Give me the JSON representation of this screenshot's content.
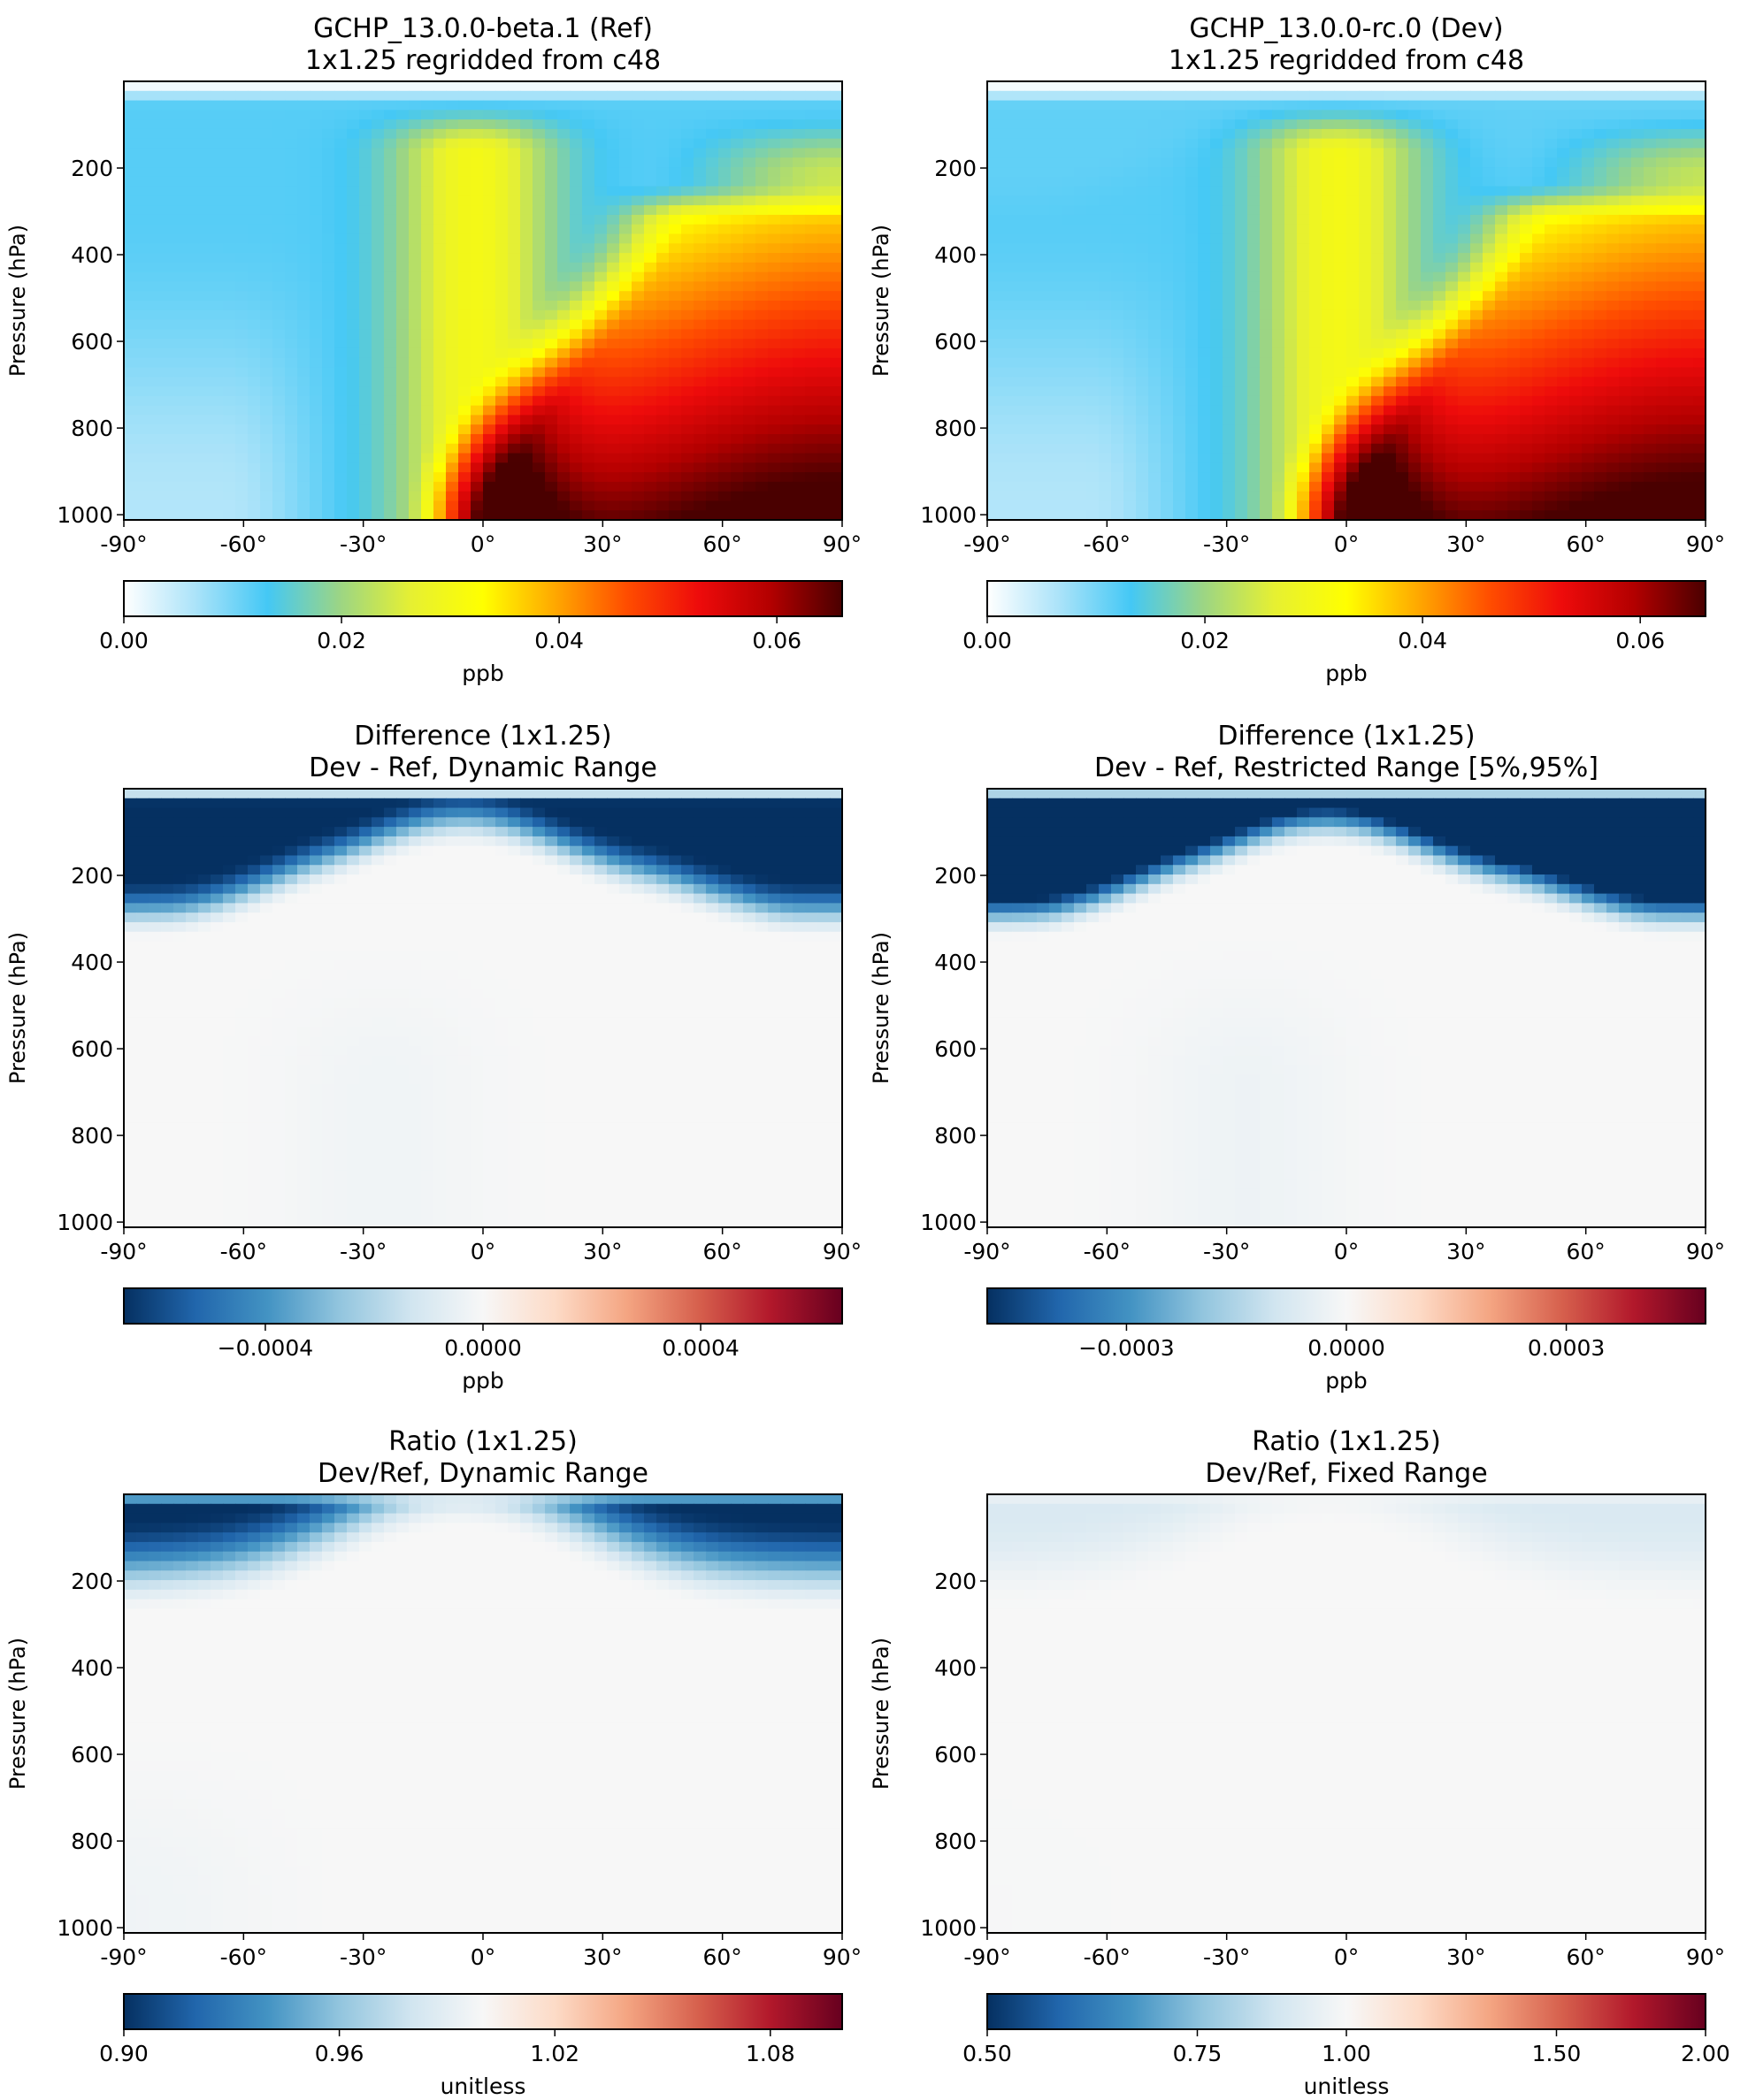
{
  "figure": {
    "y_axis_label": "Pressure (hPa)",
    "y_ticks": [
      200,
      400,
      600,
      800,
      1000
    ],
    "y_range": [
      1012,
      0
    ],
    "x_ticks": [
      "-90°",
      "-60°",
      "-30°",
      "0°",
      "30°",
      "60°",
      "90°"
    ],
    "x_range": [
      -90,
      90
    ]
  },
  "colormaps": {
    "wbgyr": [
      "#ffffff",
      "#abe3f9",
      "#44c8f5",
      "#9bd585",
      "#e6f032",
      "#ffff00",
      "#ffa800",
      "#ff4d00",
      "#ee0b0b",
      "#b30000",
      "#4a0000"
    ],
    "rdbu_r": [
      "#053061",
      "#2166ac",
      "#4393c3",
      "#92c5de",
      "#d1e5f0",
      "#f7f7f7",
      "#fddbc7",
      "#f4a582",
      "#d6604d",
      "#b2182b",
      "#67001f"
    ]
  },
  "chart_data": [
    {
      "type": "heatmap",
      "id": "ref",
      "title_line1": "GCHP_13.0.0-beta.1 (Ref)",
      "title_line2": "1x1.25 regridded from c48",
      "xlabel": "",
      "ylabel": "Pressure (hPa)",
      "field": "ref",
      "colormap": "wbgyr",
      "vrange": [
        0.0,
        0.066
      ],
      "colorbar": {
        "ticks": [
          "0.00",
          "0.02",
          "0.04",
          "0.06"
        ],
        "tick_values": [
          0.0,
          0.02,
          0.04,
          0.06
        ],
        "label": "ppb"
      }
    },
    {
      "type": "heatmap",
      "id": "dev",
      "title_line1": "GCHP_13.0.0-rc.0 (Dev)",
      "title_line2": "1x1.25 regridded from c48",
      "xlabel": "",
      "ylabel": "Pressure (hPa)",
      "field": "dev",
      "colormap": "wbgyr",
      "vrange": [
        0.0,
        0.066
      ],
      "colorbar": {
        "ticks": [
          "0.00",
          "0.02",
          "0.04",
          "0.06"
        ],
        "tick_values": [
          0.0,
          0.02,
          0.04,
          0.06
        ],
        "label": "ppb"
      }
    },
    {
      "type": "heatmap",
      "id": "diff-dynamic",
      "title_line1": "Difference (1x1.25)",
      "title_line2": "Dev - Ref, Dynamic Range",
      "xlabel": "",
      "ylabel": "Pressure (hPa)",
      "field": "diff",
      "colormap": "rdbu_r",
      "vrange": [
        -0.00066,
        0.00066
      ],
      "colorbar": {
        "ticks": [
          "−0.0004",
          "0.0000",
          "0.0004"
        ],
        "tick_values": [
          -0.0004,
          0.0,
          0.0004
        ],
        "label": "ppb"
      }
    },
    {
      "type": "heatmap",
      "id": "diff-restricted",
      "title_line1": "Difference (1x1.25)",
      "title_line2": "Dev - Ref, Restricted Range [5%,95%]",
      "xlabel": "",
      "ylabel": "Pressure (hPa)",
      "field": "diff",
      "colormap": "rdbu_r",
      "vrange": [
        -0.00049,
        0.00049
      ],
      "colorbar": {
        "ticks": [
          "−0.0003",
          "0.0000",
          "0.0003"
        ],
        "tick_values": [
          -0.0003,
          0.0,
          0.0003
        ],
        "label": "ppb"
      }
    },
    {
      "type": "heatmap",
      "id": "ratio-dynamic",
      "title_line1": "Ratio (1x1.25)",
      "title_line2": "Dev/Ref, Dynamic Range",
      "xlabel": "",
      "ylabel": "Pressure (hPa)",
      "field": "ratio",
      "colormap": "rdbu_r",
      "vrange": [
        0.9,
        1.1
      ],
      "colorbar": {
        "ticks": [
          "0.90",
          "0.96",
          "1.02",
          "1.08"
        ],
        "tick_values": [
          0.9,
          0.96,
          1.02,
          1.08
        ],
        "label": "unitless"
      }
    },
    {
      "type": "heatmap",
      "id": "ratio-fixed",
      "title_line1": "Ratio (1x1.25)",
      "title_line2": "Dev/Ref, Fixed Range",
      "xlabel": "",
      "ylabel": "Pressure (hPa)",
      "field": "ratio",
      "colormap": "rdbu_r",
      "scale": "log",
      "vrange": [
        0.5,
        2.0
      ],
      "colorbar": {
        "ticks": [
          "0.50",
          "0.75",
          "1.00",
          "1.50",
          "2.00"
        ],
        "tick_values": [
          0.5,
          0.75,
          1.0,
          1.5,
          2.0
        ],
        "label": "unitless"
      }
    }
  ]
}
